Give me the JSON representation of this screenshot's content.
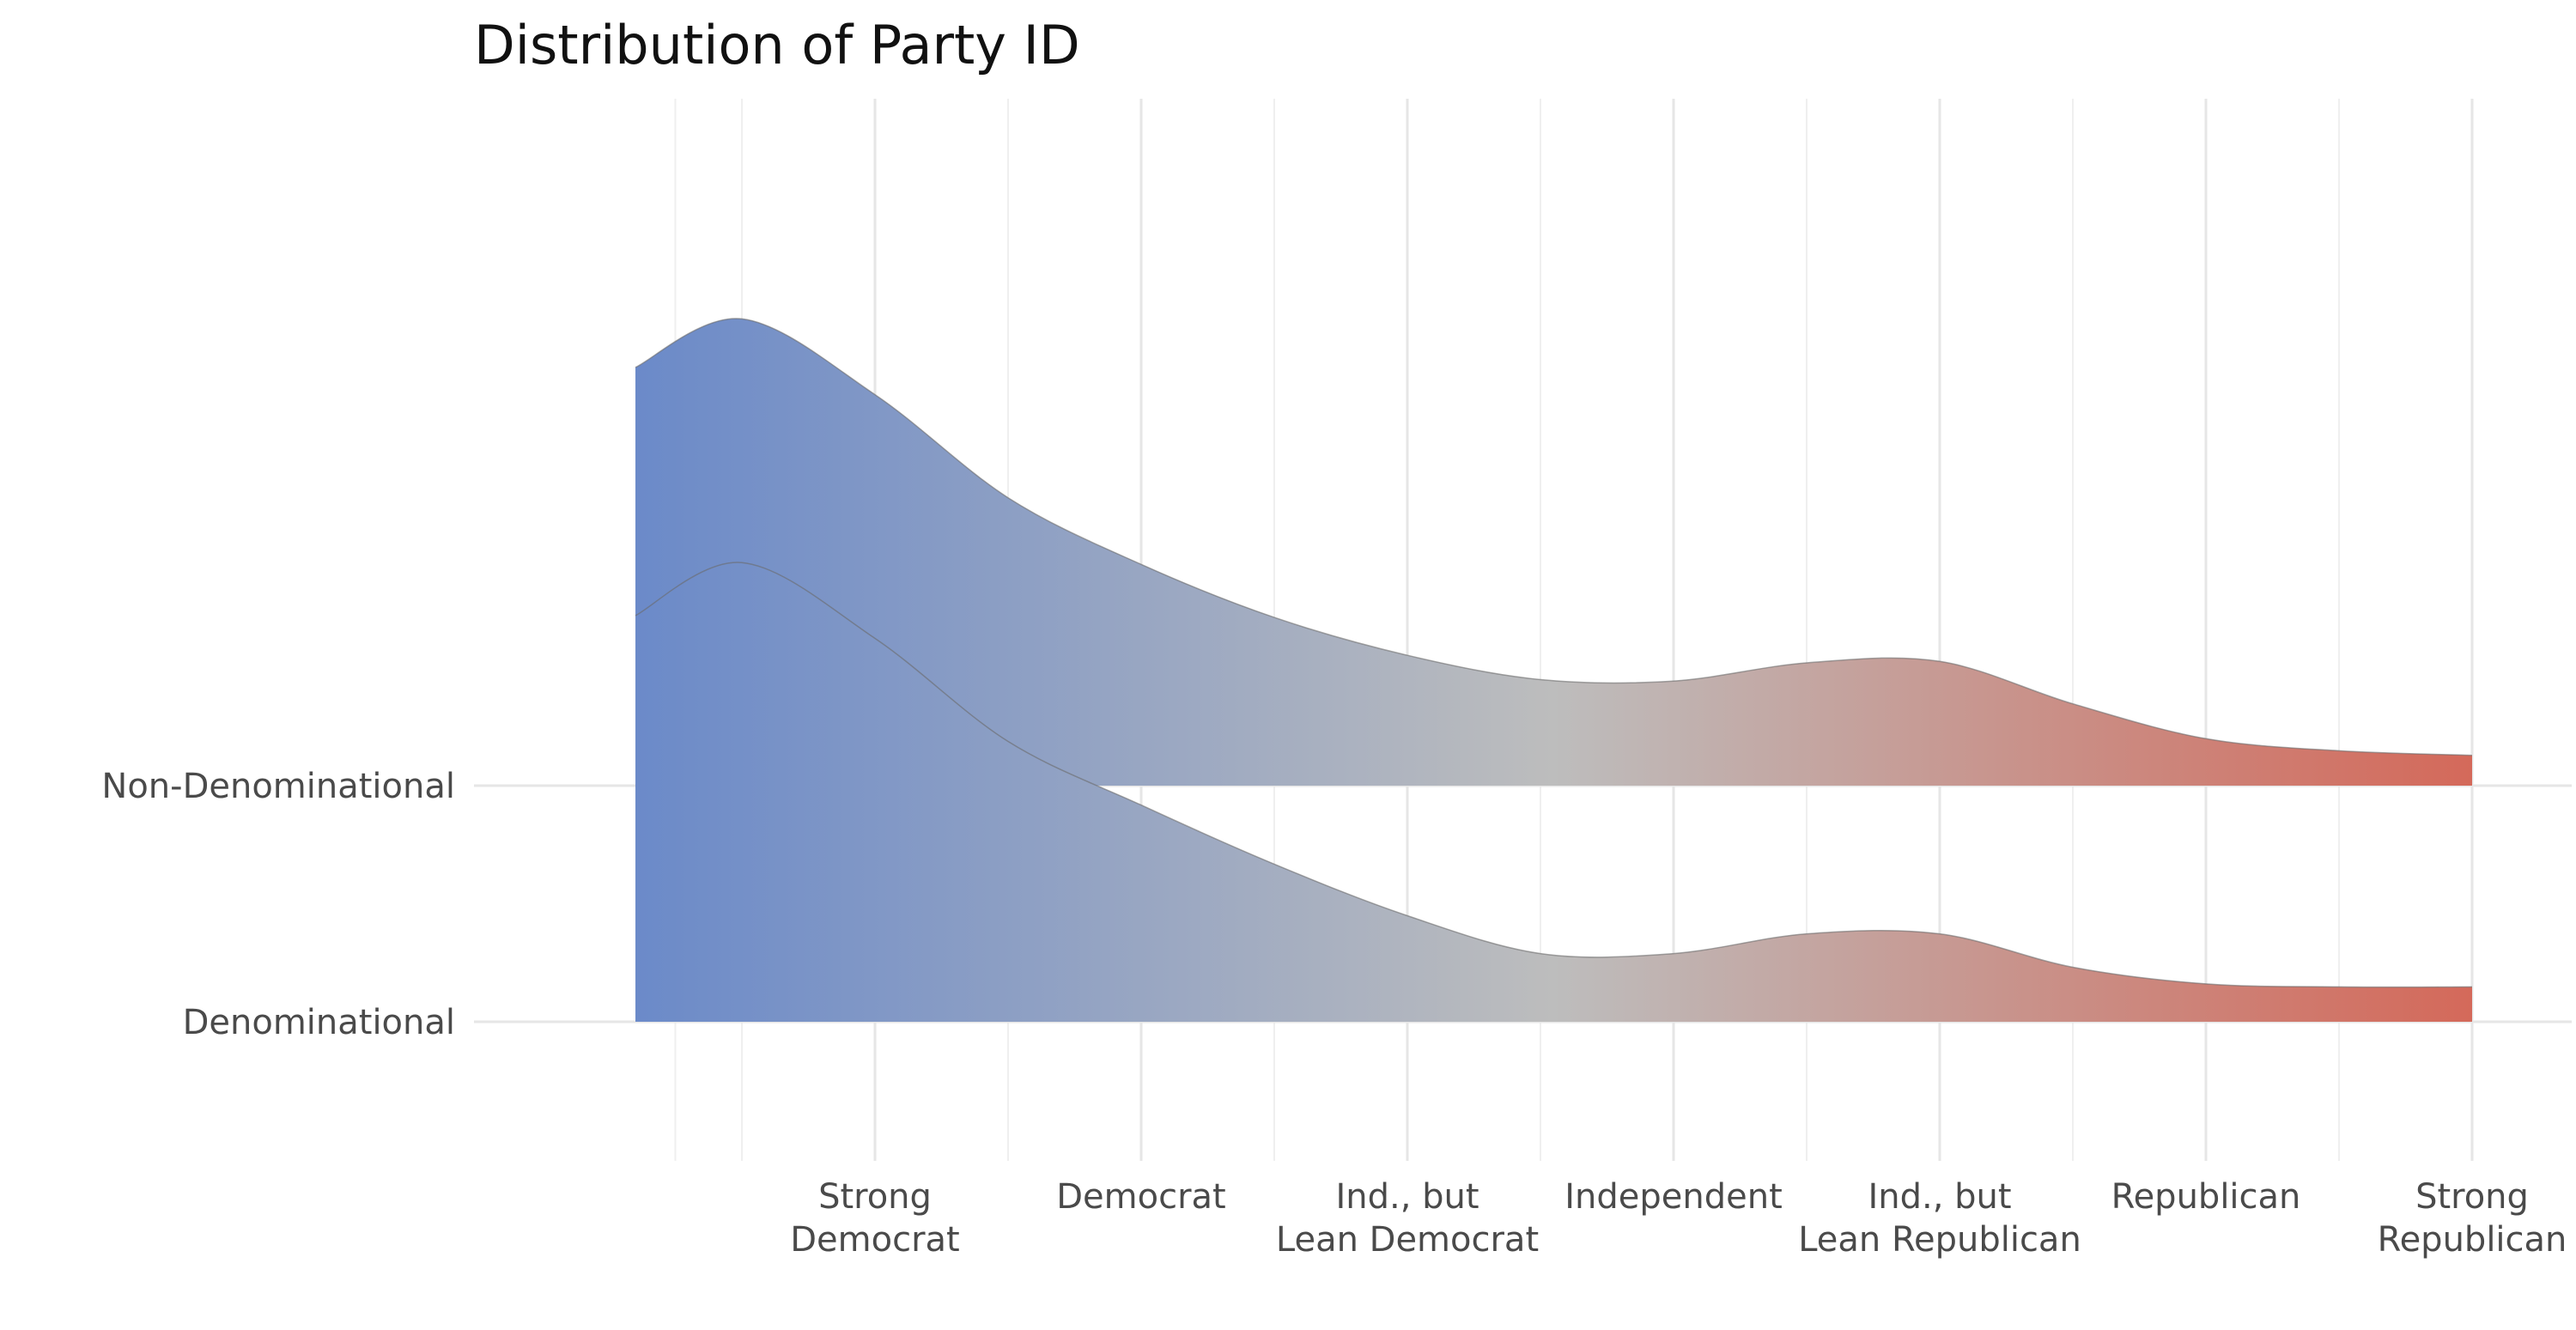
{
  "chart_data": {
    "type": "area",
    "subtype": "ridgeline-density",
    "title": "Distribution of Party ID",
    "xlabel": "",
    "ylabel": "",
    "x_categories": [
      "Strong\nDemocrat",
      "Democrat",
      "Ind., but\nLean Democrat",
      "Independent",
      "Ind., but\nLean Republican",
      "Republican",
      "Strong\nRepublican"
    ],
    "x_positions": [
      1,
      2,
      3,
      4,
      5,
      6,
      7
    ],
    "xlim": [
      -0.2,
      7.4
    ],
    "x_data_range": [
      0.1,
      7.0
    ],
    "y_categories": [
      "Denominational",
      "Non-Denominational"
    ],
    "grid": true,
    "fill_gradient": {
      "colors": [
        "#6b8ac9",
        "#bdbdbd",
        "#d4695a"
      ],
      "stops": [
        0,
        0.5,
        1
      ]
    },
    "series": [
      {
        "name": "Denominational",
        "density": [
          [
            0.1,
            2.68
          ],
          [
            0.5,
            3.03
          ],
          [
            1.0,
            2.53
          ],
          [
            1.5,
            1.85
          ],
          [
            2.0,
            1.43
          ],
          [
            2.5,
            1.04
          ],
          [
            3.0,
            0.7
          ],
          [
            3.5,
            0.45
          ],
          [
            4.0,
            0.45
          ],
          [
            4.5,
            0.58
          ],
          [
            5.0,
            0.58
          ],
          [
            5.5,
            0.36
          ],
          [
            6.0,
            0.25
          ],
          [
            6.5,
            0.23
          ],
          [
            7.0,
            0.23
          ]
        ]
      },
      {
        "name": "Non-Denominational",
        "density": [
          [
            0.1,
            2.76
          ],
          [
            0.5,
            3.08
          ],
          [
            1.0,
            2.58
          ],
          [
            1.5,
            1.9
          ],
          [
            2.0,
            1.46
          ],
          [
            2.5,
            1.11
          ],
          [
            3.0,
            0.86
          ],
          [
            3.5,
            0.7
          ],
          [
            4.0,
            0.69
          ],
          [
            4.5,
            0.81
          ],
          [
            5.0,
            0.82
          ],
          [
            5.5,
            0.54
          ],
          [
            6.0,
            0.31
          ],
          [
            6.5,
            0.23
          ],
          [
            7.0,
            0.2
          ]
        ]
      }
    ]
  }
}
